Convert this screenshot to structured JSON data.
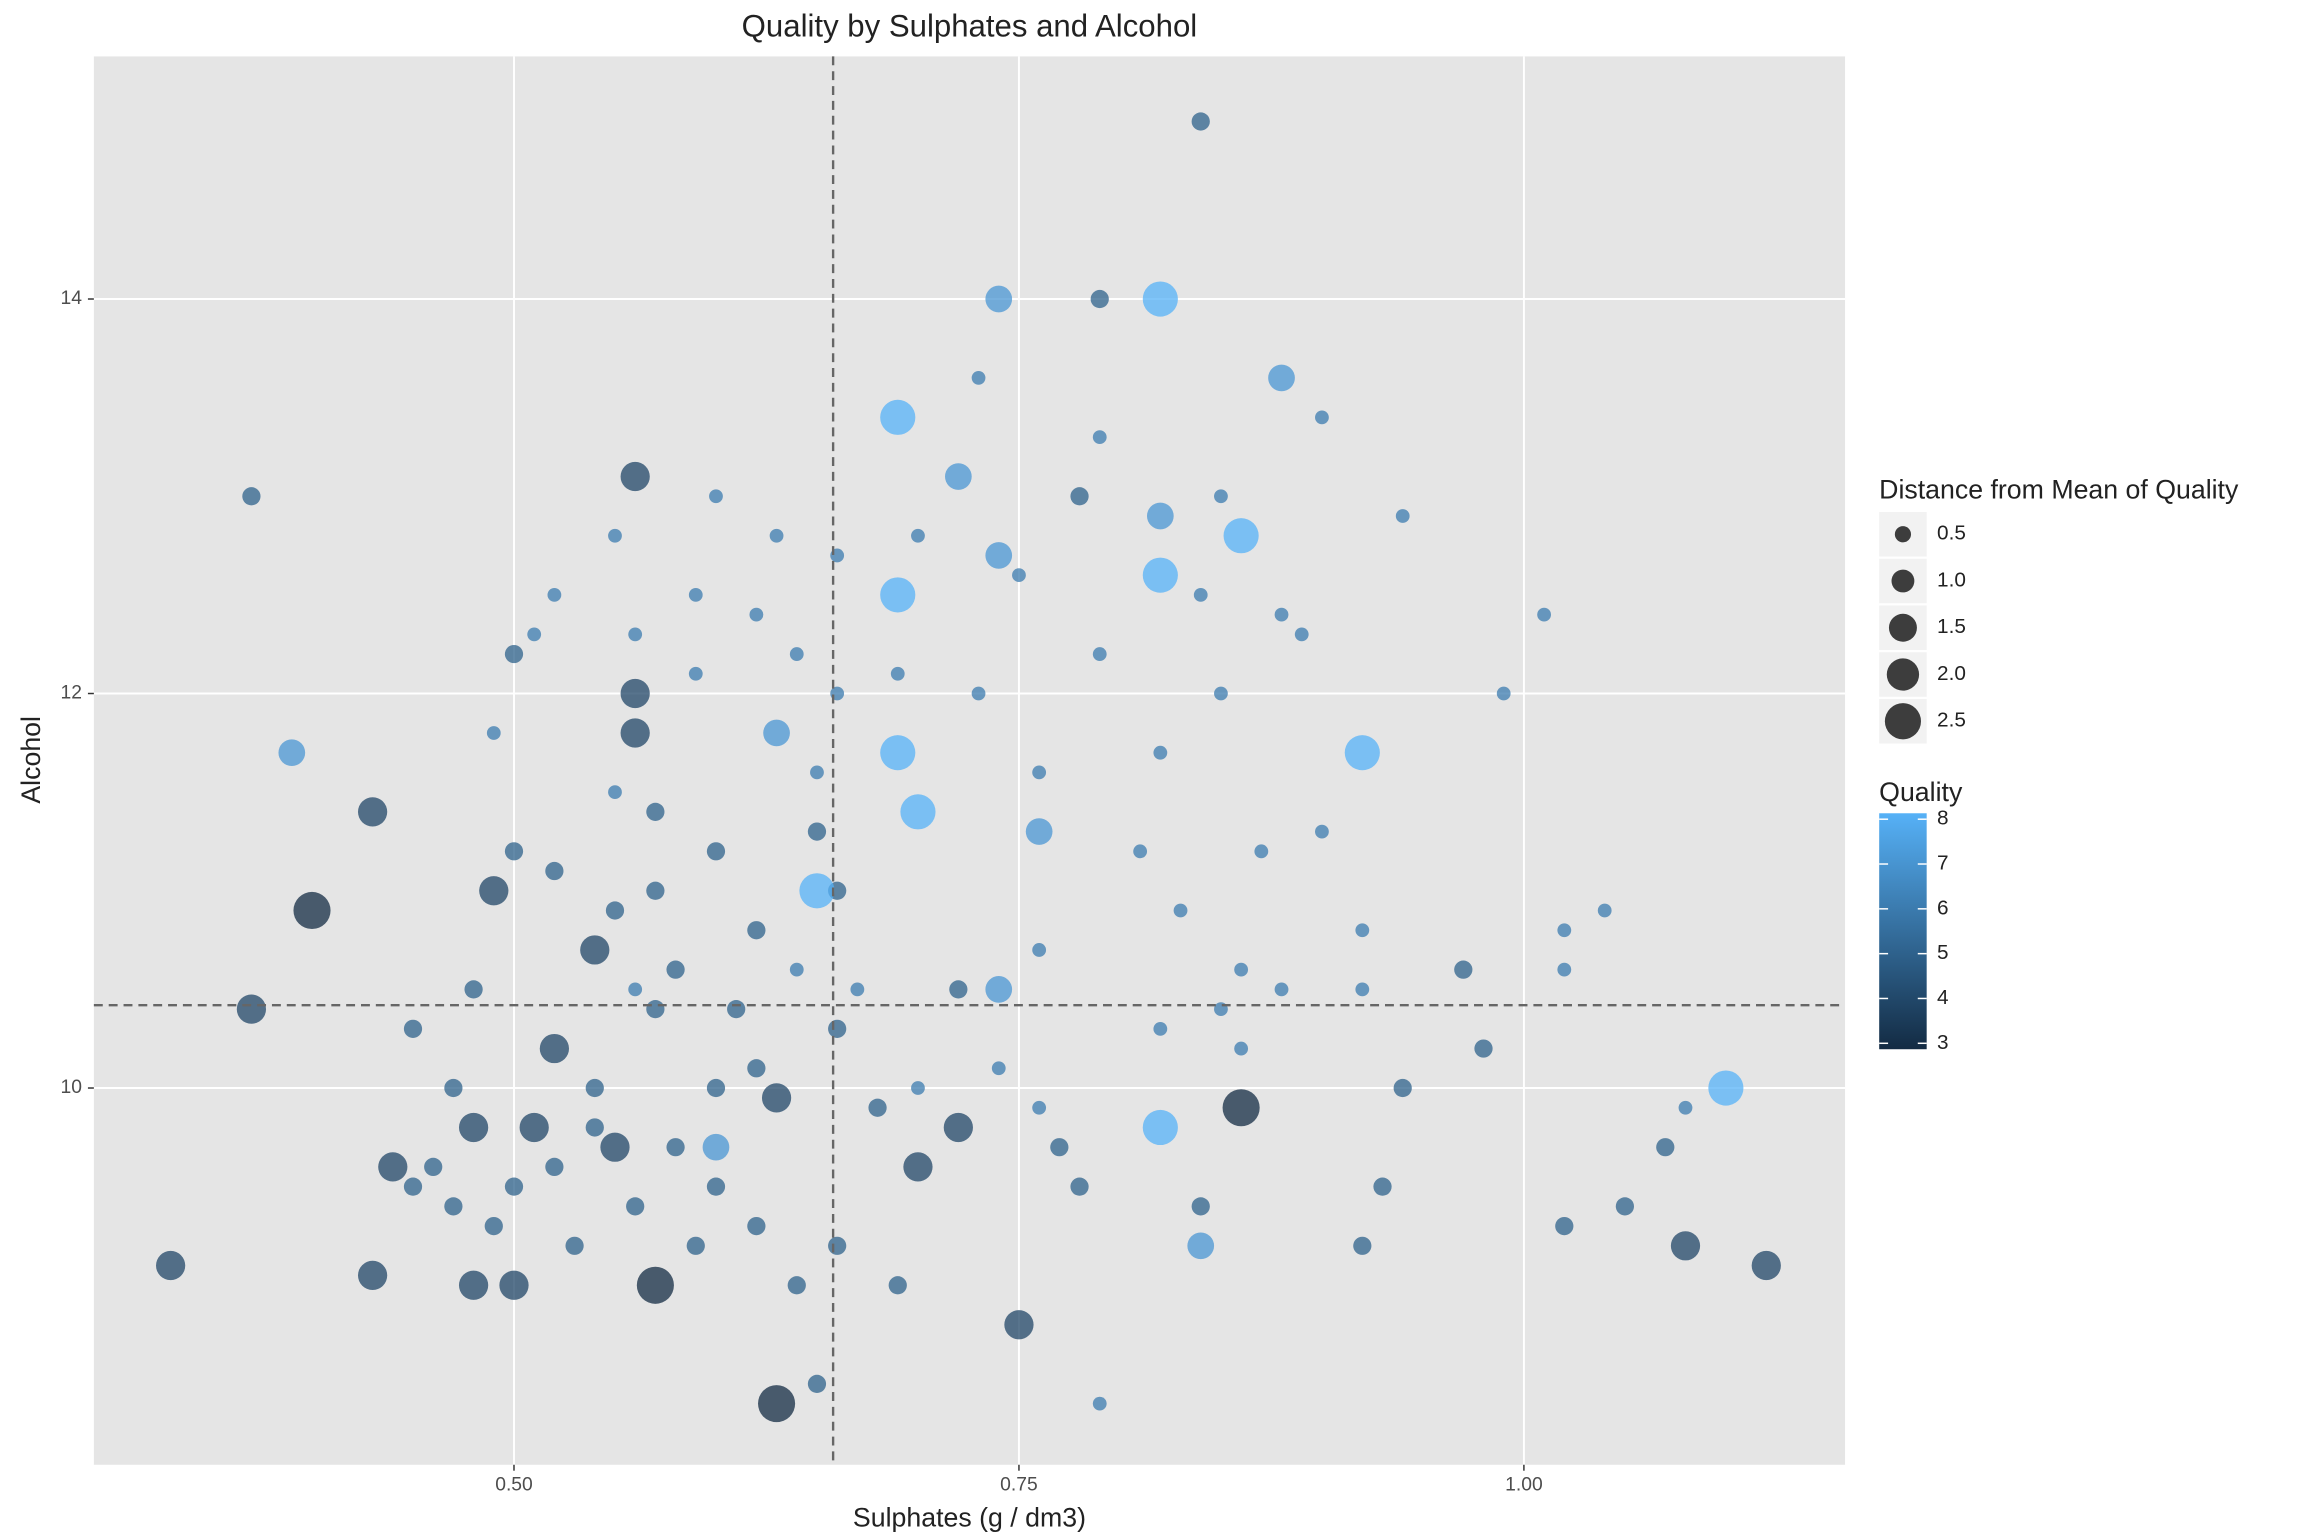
{
  "chart_data": {
    "type": "bubble",
    "title": "Quality by Sulphates and Alcohol",
    "x_label": "Sulphates (g / dm3)",
    "y_label": "Alcohol",
    "xlim": [
      0.292,
      1.159
    ],
    "ylim": [
      8.09,
      15.23
    ],
    "xticks": [
      {
        "value": 0.5,
        "label": "0.50"
      },
      {
        "value": 0.75,
        "label": "0.75"
      },
      {
        "value": 1,
        "label": "1.00"
      }
    ],
    "yticks": [
      10,
      12,
      14
    ],
    "grid": true,
    "reference_lines": {
      "x": 0.658,
      "y": 10.42
    },
    "x": [
      0.84,
      0.74,
      0.82,
      0.79,
      0.88,
      0.73,
      0.69,
      0.9,
      0.79,
      0.72,
      0.56,
      0.37,
      0.6,
      0.85,
      0.78,
      0.82,
      0.94,
      0.86,
      0.7,
      0.55,
      0.63,
      0.74,
      0.66,
      0.82,
      0.75,
      0.69,
      0.52,
      0.59,
      0.84,
      1.01,
      0.62,
      0.88,
      0.51,
      0.56,
      0.89,
      0.64,
      0.79,
      0.5,
      0.59,
      0.69,
      0.56,
      0.73,
      0.85,
      0.99,
      0.66,
      0.63,
      0.56,
      0.49,
      0.69,
      0.92,
      0.39,
      0.82,
      0.76,
      0.65,
      0.7,
      0.43,
      0.76,
      0.9,
      0.55,
      0.5,
      0.52,
      0.6,
      0.65,
      0.81,
      0.87,
      0.4,
      0.49,
      0.57,
      0.66,
      0.65,
      0.55,
      0.83,
      1.04,
      0.92,
      1.02,
      0.54,
      0.76,
      0.64,
      0.86,
      1.02,
      0.97,
      0.48,
      0.56,
      0.67,
      0.74,
      0.88,
      0.92,
      0.37,
      0.57,
      0.85,
      0.82,
      0.52,
      0.62,
      0.74,
      0.98,
      0.86,
      0.47,
      0.54,
      0.6,
      0.63,
      0.7,
      1.1,
      0.94,
      0.86,
      0.82,
      0.76,
      1.08,
      0.48,
      0.51,
      0.58,
      0.55,
      0.46,
      0.44,
      0.7,
      0.72,
      1.07,
      0.93,
      0.5,
      0.6,
      0.78,
      0.84,
      1.05,
      0.49,
      0.62,
      1.02,
      0.53,
      0.66,
      0.84,
      0.92,
      1.08,
      0.33,
      1.12,
      0.43,
      0.48,
      0.5,
      0.57,
      0.64,
      0.69,
      0.75,
      0.65,
      0.63,
      0.79,
      0.6,
      0.45,
      0.47,
      0.52,
      0.56,
      0.59,
      0.54,
      0.58,
      0.61,
      0.66,
      0.68,
      0.62,
      0.57,
      0.45,
      0.72,
      0.77
    ],
    "y": [
      14.9,
      14.0,
      14.0,
      14.0,
      13.6,
      13.6,
      13.4,
      13.4,
      13.3,
      13.1,
      13.1,
      13.0,
      13.0,
      13.0,
      13.0,
      12.9,
      12.9,
      12.8,
      12.8,
      12.8,
      12.8,
      12.7,
      12.7,
      12.6,
      12.6,
      12.5,
      12.5,
      12.5,
      12.5,
      12.4,
      12.4,
      12.4,
      12.3,
      12.3,
      12.3,
      12.2,
      12.2,
      12.2,
      12.1,
      12.1,
      12.0,
      12.0,
      12.0,
      12.0,
      12.0,
      11.8,
      11.8,
      11.8,
      11.7,
      11.7,
      11.7,
      11.7,
      11.6,
      11.6,
      11.4,
      11.4,
      11.3,
      11.3,
      11.5,
      11.2,
      11.1,
      11.2,
      11.3,
      11.2,
      11.2,
      10.9,
      11.0,
      11.0,
      11.0,
      11.0,
      10.9,
      10.9,
      10.9,
      10.8,
      10.8,
      10.7,
      10.7,
      10.6,
      10.6,
      10.6,
      10.6,
      10.5,
      10.5,
      10.5,
      10.5,
      10.5,
      10.5,
      10.4,
      10.4,
      10.4,
      10.3,
      10.2,
      10.1,
      10.1,
      10.2,
      10.2,
      10.0,
      10.0,
      10.0,
      9.95,
      10.0,
      10.0,
      10.0,
      9.9,
      9.8,
      9.9,
      9.9,
      9.8,
      9.8,
      9.7,
      9.7,
      9.6,
      9.6,
      9.6,
      9.8,
      9.7,
      9.5,
      9.5,
      9.5,
      9.5,
      9.4,
      9.4,
      9.3,
      9.3,
      9.3,
      9.2,
      9.2,
      9.2,
      9.2,
      9.2,
      9.1,
      9.1,
      9.05,
      9.0,
      9.0,
      9.0,
      9.0,
      9.0,
      8.8,
      8.5,
      8.4,
      8.4,
      9.7,
      9.5,
      9.4,
      9.6,
      9.4,
      9.2,
      9.8,
      10.6,
      10.4,
      10.3,
      9.9,
      10.8,
      11.4,
      10.3,
      10.5,
      9.7
    ],
    "quality": [
      5,
      7,
      8,
      5,
      7,
      6,
      8,
      6,
      6,
      7,
      4,
      5,
      6,
      6,
      5,
      7,
      6,
      8,
      6,
      6,
      6,
      7,
      6,
      8,
      6,
      8,
      6,
      6,
      6,
      6,
      6,
      6,
      6,
      6,
      6,
      6,
      6,
      5,
      6,
      6,
      4,
      6,
      6,
      6,
      6,
      7,
      4,
      6,
      8,
      8,
      7,
      6,
      6,
      6,
      8,
      4,
      7,
      6,
      6,
      5,
      5,
      5,
      5,
      6,
      6,
      3,
      4,
      5,
      5,
      8,
      5,
      6,
      6,
      6,
      6,
      4,
      6,
      6,
      6,
      6,
      5,
      5,
      6,
      6,
      7,
      6,
      6,
      4,
      5,
      6,
      6,
      4,
      5,
      6,
      5,
      6,
      5,
      5,
      5,
      4,
      6,
      8,
      5,
      3,
      8,
      6,
      6,
      4,
      4,
      5,
      4,
      5,
      4,
      4,
      4,
      5,
      5,
      5,
      5,
      5,
      5,
      5,
      5,
      5,
      5,
      5,
      5,
      7,
      5,
      4,
      4,
      4,
      4,
      4,
      4,
      3,
      5,
      5,
      4,
      5,
      3,
      6,
      7,
      5,
      5,
      5,
      5,
      5,
      5,
      5,
      5,
      5,
      5,
      5,
      5,
      5,
      5,
      5
    ],
    "size": [
      0.636,
      1.364,
      2.364,
      0.636,
      1.364,
      0.364,
      2.364,
      0.364,
      0.364,
      1.364,
      1.636,
      0.636,
      0.364,
      0.364,
      0.636,
      1.364,
      0.364,
      2.364,
      0.364,
      0.364,
      0.364,
      1.364,
      0.364,
      2.364,
      0.364,
      2.364,
      0.364,
      0.364,
      0.364,
      0.364,
      0.364,
      0.364,
      0.364,
      0.364,
      0.364,
      0.364,
      0.364,
      0.636,
      0.364,
      0.364,
      1.636,
      0.364,
      0.364,
      0.364,
      0.364,
      1.364,
      1.636,
      0.364,
      2.364,
      2.364,
      1.364,
      0.364,
      0.364,
      0.364,
      2.364,
      1.636,
      1.364,
      0.364,
      0.364,
      0.636,
      0.636,
      0.636,
      0.636,
      0.364,
      0.364,
      2.636,
      1.636,
      0.636,
      0.636,
      2.364,
      0.636,
      0.364,
      0.364,
      0.364,
      0.364,
      1.636,
      0.364,
      0.364,
      0.364,
      0.364,
      0.636,
      0.636,
      0.364,
      0.364,
      1.364,
      0.364,
      0.364,
      1.636,
      0.636,
      0.364,
      0.364,
      1.636,
      0.636,
      0.364,
      0.636,
      0.364,
      0.636,
      0.636,
      0.636,
      1.636,
      0.364,
      2.364,
      0.636,
      2.636,
      2.364,
      0.364,
      0.364,
      1.636,
      1.636,
      0.636,
      1.636,
      0.636,
      1.636,
      1.636,
      1.636,
      0.636,
      0.636,
      0.636,
      0.636,
      0.636,
      0.636,
      0.636,
      0.636,
      0.636,
      0.636,
      0.636,
      0.636,
      1.364,
      0.636,
      1.636,
      1.636,
      1.636,
      1.636,
      1.636,
      1.636,
      2.636,
      0.636,
      0.636,
      1.636,
      0.636,
      2.636,
      0.364,
      1.364,
      0.636,
      0.636,
      0.636,
      0.636,
      0.636,
      0.636,
      0.636,
      0.636,
      0.636,
      0.636,
      0.636,
      0.636,
      0.636,
      0.636,
      0.636
    ],
    "size_legend": {
      "title": "Distance from Mean of Quality",
      "values": [
        0.5,
        {
          "value": 1,
          "label": "1.0"
        },
        1.5,
        {
          "value": 2,
          "label": "2.0"
        },
        2.5
      ]
    },
    "color_legend": {
      "title": "Quality",
      "lim": [
        3,
        8
      ],
      "ticks": [
        3,
        4,
        5,
        6,
        7,
        8
      ],
      "color_low": "#132B43",
      "color_high": "#56B1F7"
    }
  }
}
